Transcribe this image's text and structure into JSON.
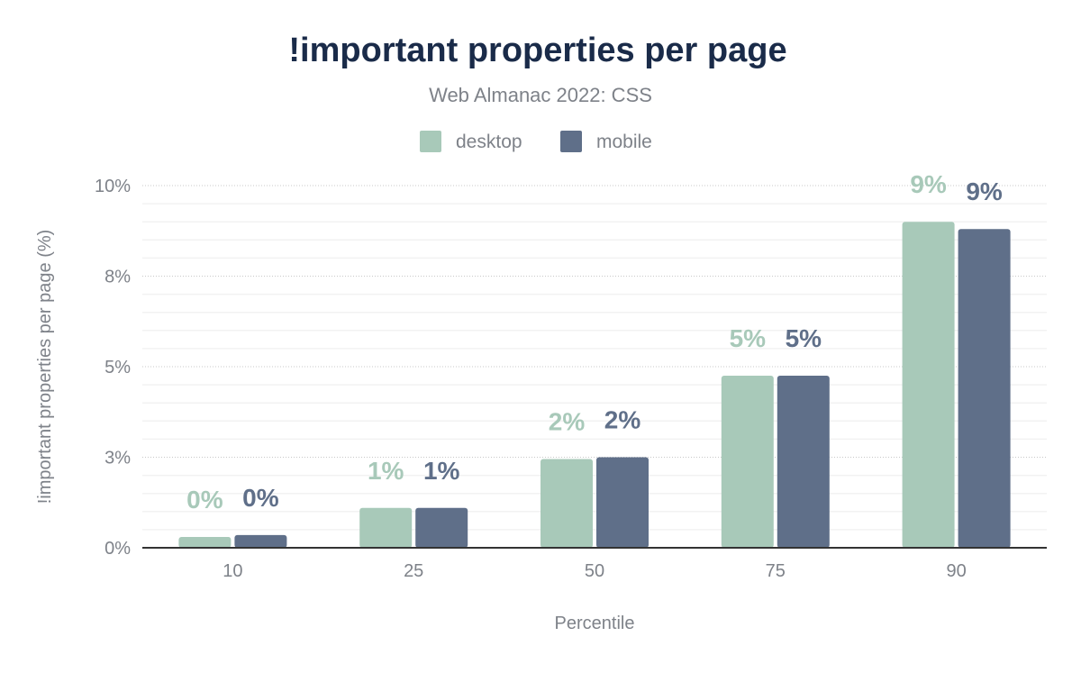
{
  "chart_data": {
    "type": "bar",
    "title": "!important properties per page",
    "subtitle": "Web Almanac 2022: CSS",
    "xlabel": "Percentile",
    "ylabel": "!important properties per page (%)",
    "categories": [
      "10",
      "25",
      "50",
      "75",
      "90"
    ],
    "series": [
      {
        "name": "desktop",
        "color": "#a8c9b9",
        "values": [
          0.3,
          1.1,
          2.45,
          4.75,
          9.0
        ],
        "labels": [
          "0%",
          "1%",
          "2%",
          "5%",
          "9%"
        ]
      },
      {
        "name": "mobile",
        "color": "#5f6f89",
        "values": [
          0.35,
          1.1,
          2.5,
          4.75,
          8.8
        ],
        "labels": [
          "0%",
          "1%",
          "2%",
          "5%",
          "9%"
        ]
      }
    ],
    "ylim": [
      0,
      10
    ],
    "yticks": [
      0,
      2.5,
      5,
      7.5,
      10
    ],
    "ytick_labels": [
      "0%",
      "3%",
      "5%",
      "8%",
      "10%"
    ],
    "grid": true,
    "legend": "top-center"
  }
}
